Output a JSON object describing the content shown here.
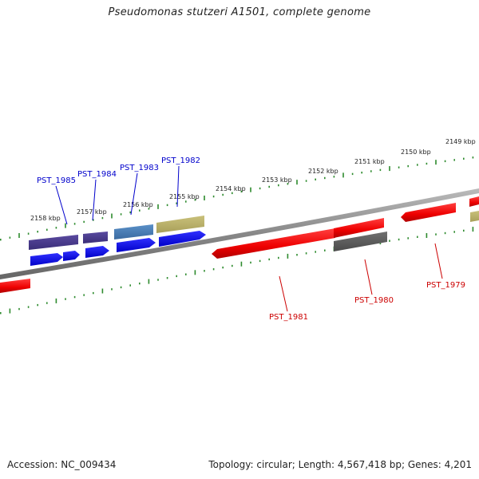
{
  "title": "Pseudomonas stutzeri A1501, complete genome",
  "footer": {
    "accession": "Accession: NC_009434",
    "summary": "Topology: circular; Length: 4,567,418 bp; Genes: 4,201"
  },
  "colors": {
    "ruler_ticks": "#2e8b2e",
    "backbone": "#888888",
    "label_blue": "#0000cc",
    "label_red": "#cc0000"
  },
  "ruler_outer_labels": [
    "2158 kbp",
    "2157 kbp",
    "2156 kbp",
    "2155 kbp",
    "2154 kbp",
    "2153 kbp",
    "2152 kbp",
    "2151 kbp",
    "2150 kbp",
    "2149 kbp"
  ],
  "gene_labels": {
    "top": [
      "PST_1985",
      "PST_1984",
      "PST_1983",
      "PST_1982"
    ],
    "bottom": [
      "PST_1981",
      "PST_1980",
      "PST_1979"
    ]
  }
}
